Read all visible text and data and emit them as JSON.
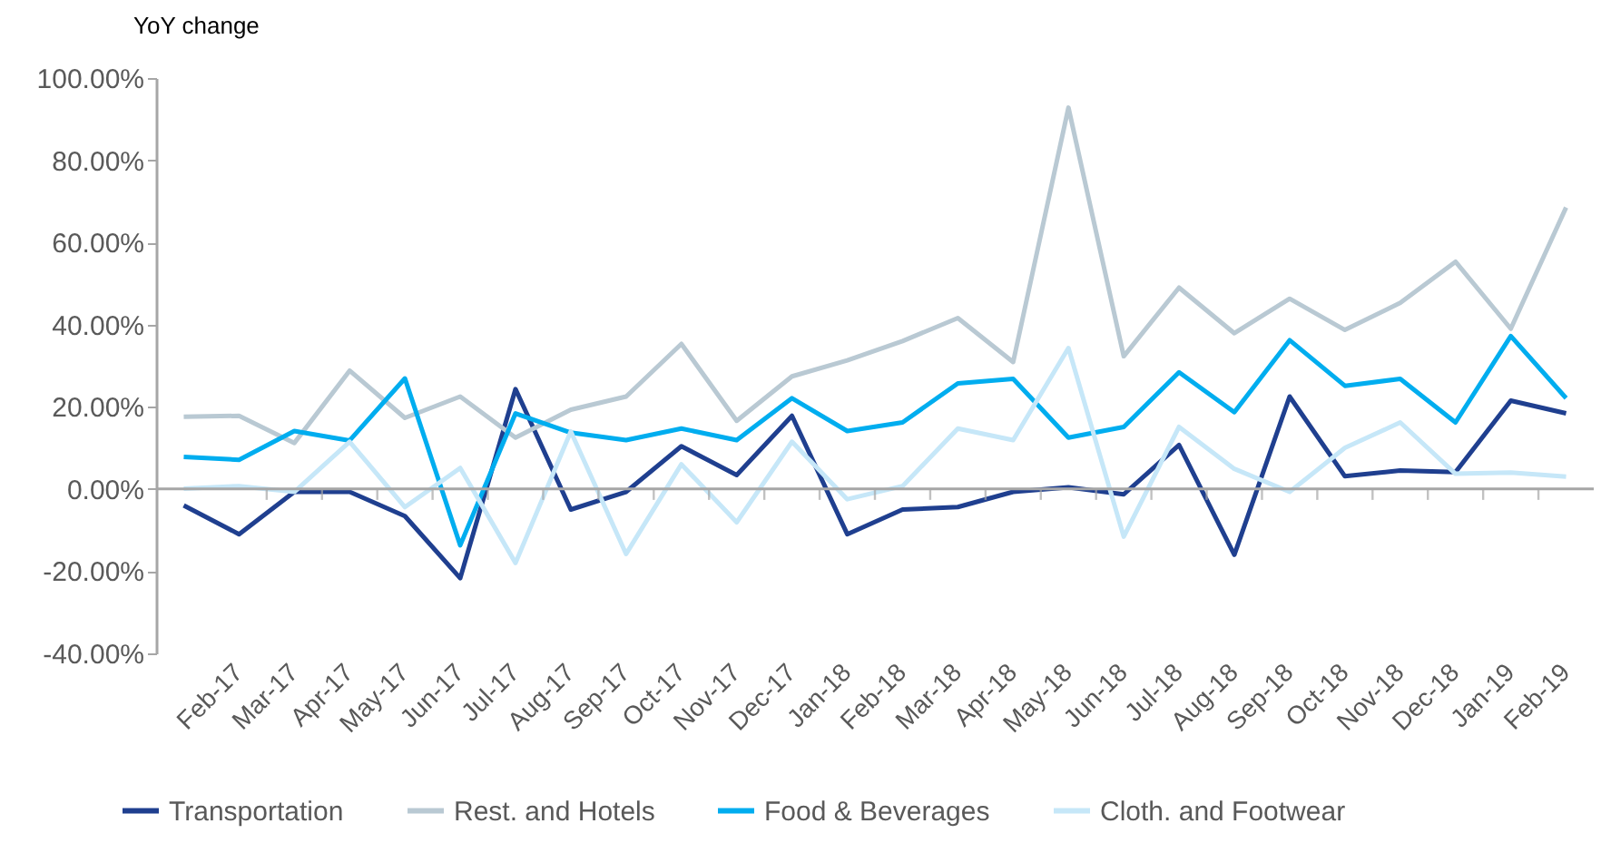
{
  "chart_data": {
    "type": "line",
    "ylabel": "YoY change",
    "categories": [
      null,
      "Feb-17",
      "Mar-17",
      "Apr-17",
      "May-17",
      "Jun-17",
      "Jul-17",
      "Aug-17",
      "Sep-17",
      "Oct-17",
      "Nov-17",
      "Dec-17",
      "Jan-18",
      "Feb-18",
      "Mar-18",
      "Apr-18",
      "May-18",
      "Jun-18",
      "Jul-18",
      "Aug-18",
      "Sep-18",
      "Oct-18",
      "Nov-18",
      "Dec-18",
      "Jan-19",
      "Feb-19"
    ],
    "series": [
      {
        "name": "Transportation",
        "color": "#1f3f8f",
        "values": [
          -4.0,
          -11,
          -0.7,
          -0.7,
          -6.6,
          -21.7,
          24.3,
          -5,
          -0.7,
          10.4,
          3.4,
          17.8,
          -11,
          -5,
          -4.4,
          -0.7,
          0.4,
          -1.3,
          10.7,
          -16,
          22.5,
          3.1,
          4.5,
          4.1,
          21.5,
          18.4
        ]
      },
      {
        "name": "Rest. and Hotels",
        "color": "#b9c9d3",
        "values": [
          17.6,
          17.8,
          11.2,
          28.8,
          17.3,
          22.5,
          12.5,
          19.3,
          22.5,
          35.3,
          16.6,
          27.4,
          31.3,
          36,
          41.6,
          30.9,
          92.8,
          32.3,
          49,
          37.9,
          46.3,
          38.7,
          45.3,
          55.3,
          39,
          68.5
        ]
      },
      {
        "name": "Food & Beverages",
        "color": "#00adef",
        "values": [
          7.8,
          7.1,
          14.1,
          11.8,
          26.9,
          -13.7,
          18.4,
          13.7,
          11.9,
          14.7,
          11.9,
          22.1,
          14.1,
          16.2,
          25.7,
          26.8,
          12.5,
          15.1,
          28.4,
          18.7,
          36.2,
          25.1,
          26.8,
          16.2,
          37.2,
          22.1
        ]
      },
      {
        "name": "Cloth. and Footwear",
        "color": "#c6e7f8",
        "values": [
          0.1,
          0.7,
          -0.7,
          11.5,
          -4.4,
          5.1,
          -18,
          14,
          -15.8,
          6,
          -8.1,
          11.5,
          -2.5,
          0.7,
          14.7,
          11.9,
          34.3,
          -11.6,
          15.1,
          4.9,
          -0.7,
          10,
          16.2,
          3.7,
          4,
          3
        ]
      }
    ],
    "ylim": [
      -40,
      100
    ],
    "yticks": [
      {
        "value": -40,
        "label": "-40.00%"
      },
      {
        "value": -20,
        "label": "-20.00%"
      },
      {
        "value": 0,
        "label": "0.00%"
      },
      {
        "value": 20,
        "label": "20.00%"
      },
      {
        "value": 40,
        "label": "40.00%"
      },
      {
        "value": 60,
        "label": "60.00%"
      },
      {
        "value": 80,
        "label": "80.00%"
      },
      {
        "value": 100,
        "label": "100.00%"
      }
    ],
    "ref_lines": [
      {
        "axis": "y",
        "value": 0,
        "color": "#a6a6a6"
      }
    ],
    "grid": false,
    "legend": "bottom",
    "line_style": "solid",
    "marker": "none"
  }
}
